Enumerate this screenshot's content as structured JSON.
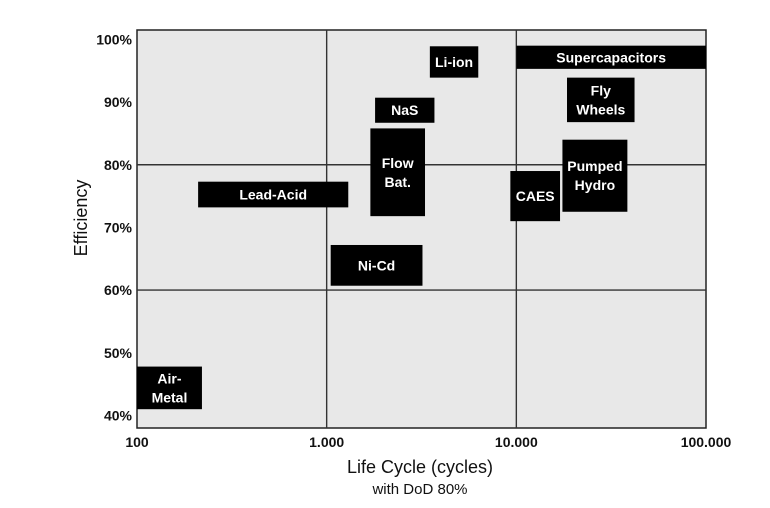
{
  "chart_data": {
    "type": "range-boxes",
    "ylabel": "Efficiency",
    "xlabel_line1": "Life Cycle (cycles)",
    "xlabel_line2": "with DoD 80%",
    "x_scale": "log",
    "x_ticks": [
      {
        "value": 100,
        "label": "100"
      },
      {
        "value": 1000,
        "label": "1.000"
      },
      {
        "value": 10000,
        "label": "10.000"
      },
      {
        "value": 100000,
        "label": "100.000"
      }
    ],
    "y_ticks": [
      {
        "value": 40,
        "label": "40%"
      },
      {
        "value": 50,
        "label": "50%"
      },
      {
        "value": 60,
        "label": "60%"
      },
      {
        "value": 70,
        "label": "70%"
      },
      {
        "value": 80,
        "label": "80%"
      },
      {
        "value": 90,
        "label": "90%"
      },
      {
        "value": 100,
        "label": "100%"
      }
    ],
    "xlim": [
      100,
      100000
    ],
    "ylim": [
      38,
      101.5
    ],
    "gridlines": {
      "x": [
        1000,
        10000
      ],
      "y": [
        60,
        80
      ]
    },
    "plot_background": "#e8e8e8",
    "box_color": "#000000",
    "label_color": "#ffffff",
    "technologies": [
      {
        "label": [
          "Supercapacitors"
        ],
        "x_range": [
          10000,
          100000
        ],
        "y_range": [
          95.3,
          99.0
        ]
      },
      {
        "label": [
          "Li-ion"
        ],
        "x_range": [
          3500,
          6300
        ],
        "y_range": [
          93.9,
          98.9
        ]
      },
      {
        "label": [
          "Fly",
          "Wheels"
        ],
        "x_range": [
          18500,
          42000
        ],
        "y_range": [
          86.8,
          93.9
        ]
      },
      {
        "label": [
          "NaS"
        ],
        "x_range": [
          1800,
          3700
        ],
        "y_range": [
          86.7,
          90.7
        ]
      },
      {
        "label": [
          "Flow",
          "Bat."
        ],
        "x_range": [
          1700,
          3300
        ],
        "y_range": [
          71.8,
          85.8
        ]
      },
      {
        "label": [
          "Pumped",
          "Hydro"
        ],
        "x_range": [
          17500,
          38500
        ],
        "y_range": [
          72.5,
          84.0
        ]
      },
      {
        "label": [
          "CAES"
        ],
        "x_range": [
          9300,
          17000
        ],
        "y_range": [
          71.0,
          79.0
        ]
      },
      {
        "label": [
          "Lead-Acid"
        ],
        "x_range": [
          210,
          1300
        ],
        "y_range": [
          73.2,
          77.3
        ]
      },
      {
        "label": [
          "Ni-Cd"
        ],
        "x_range": [
          1050,
          3200
        ],
        "y_range": [
          60.7,
          67.2
        ]
      },
      {
        "label": [
          "Air-",
          "Metal"
        ],
        "x_range": [
          100,
          220
        ],
        "y_range": [
          41.0,
          47.8
        ]
      }
    ]
  }
}
